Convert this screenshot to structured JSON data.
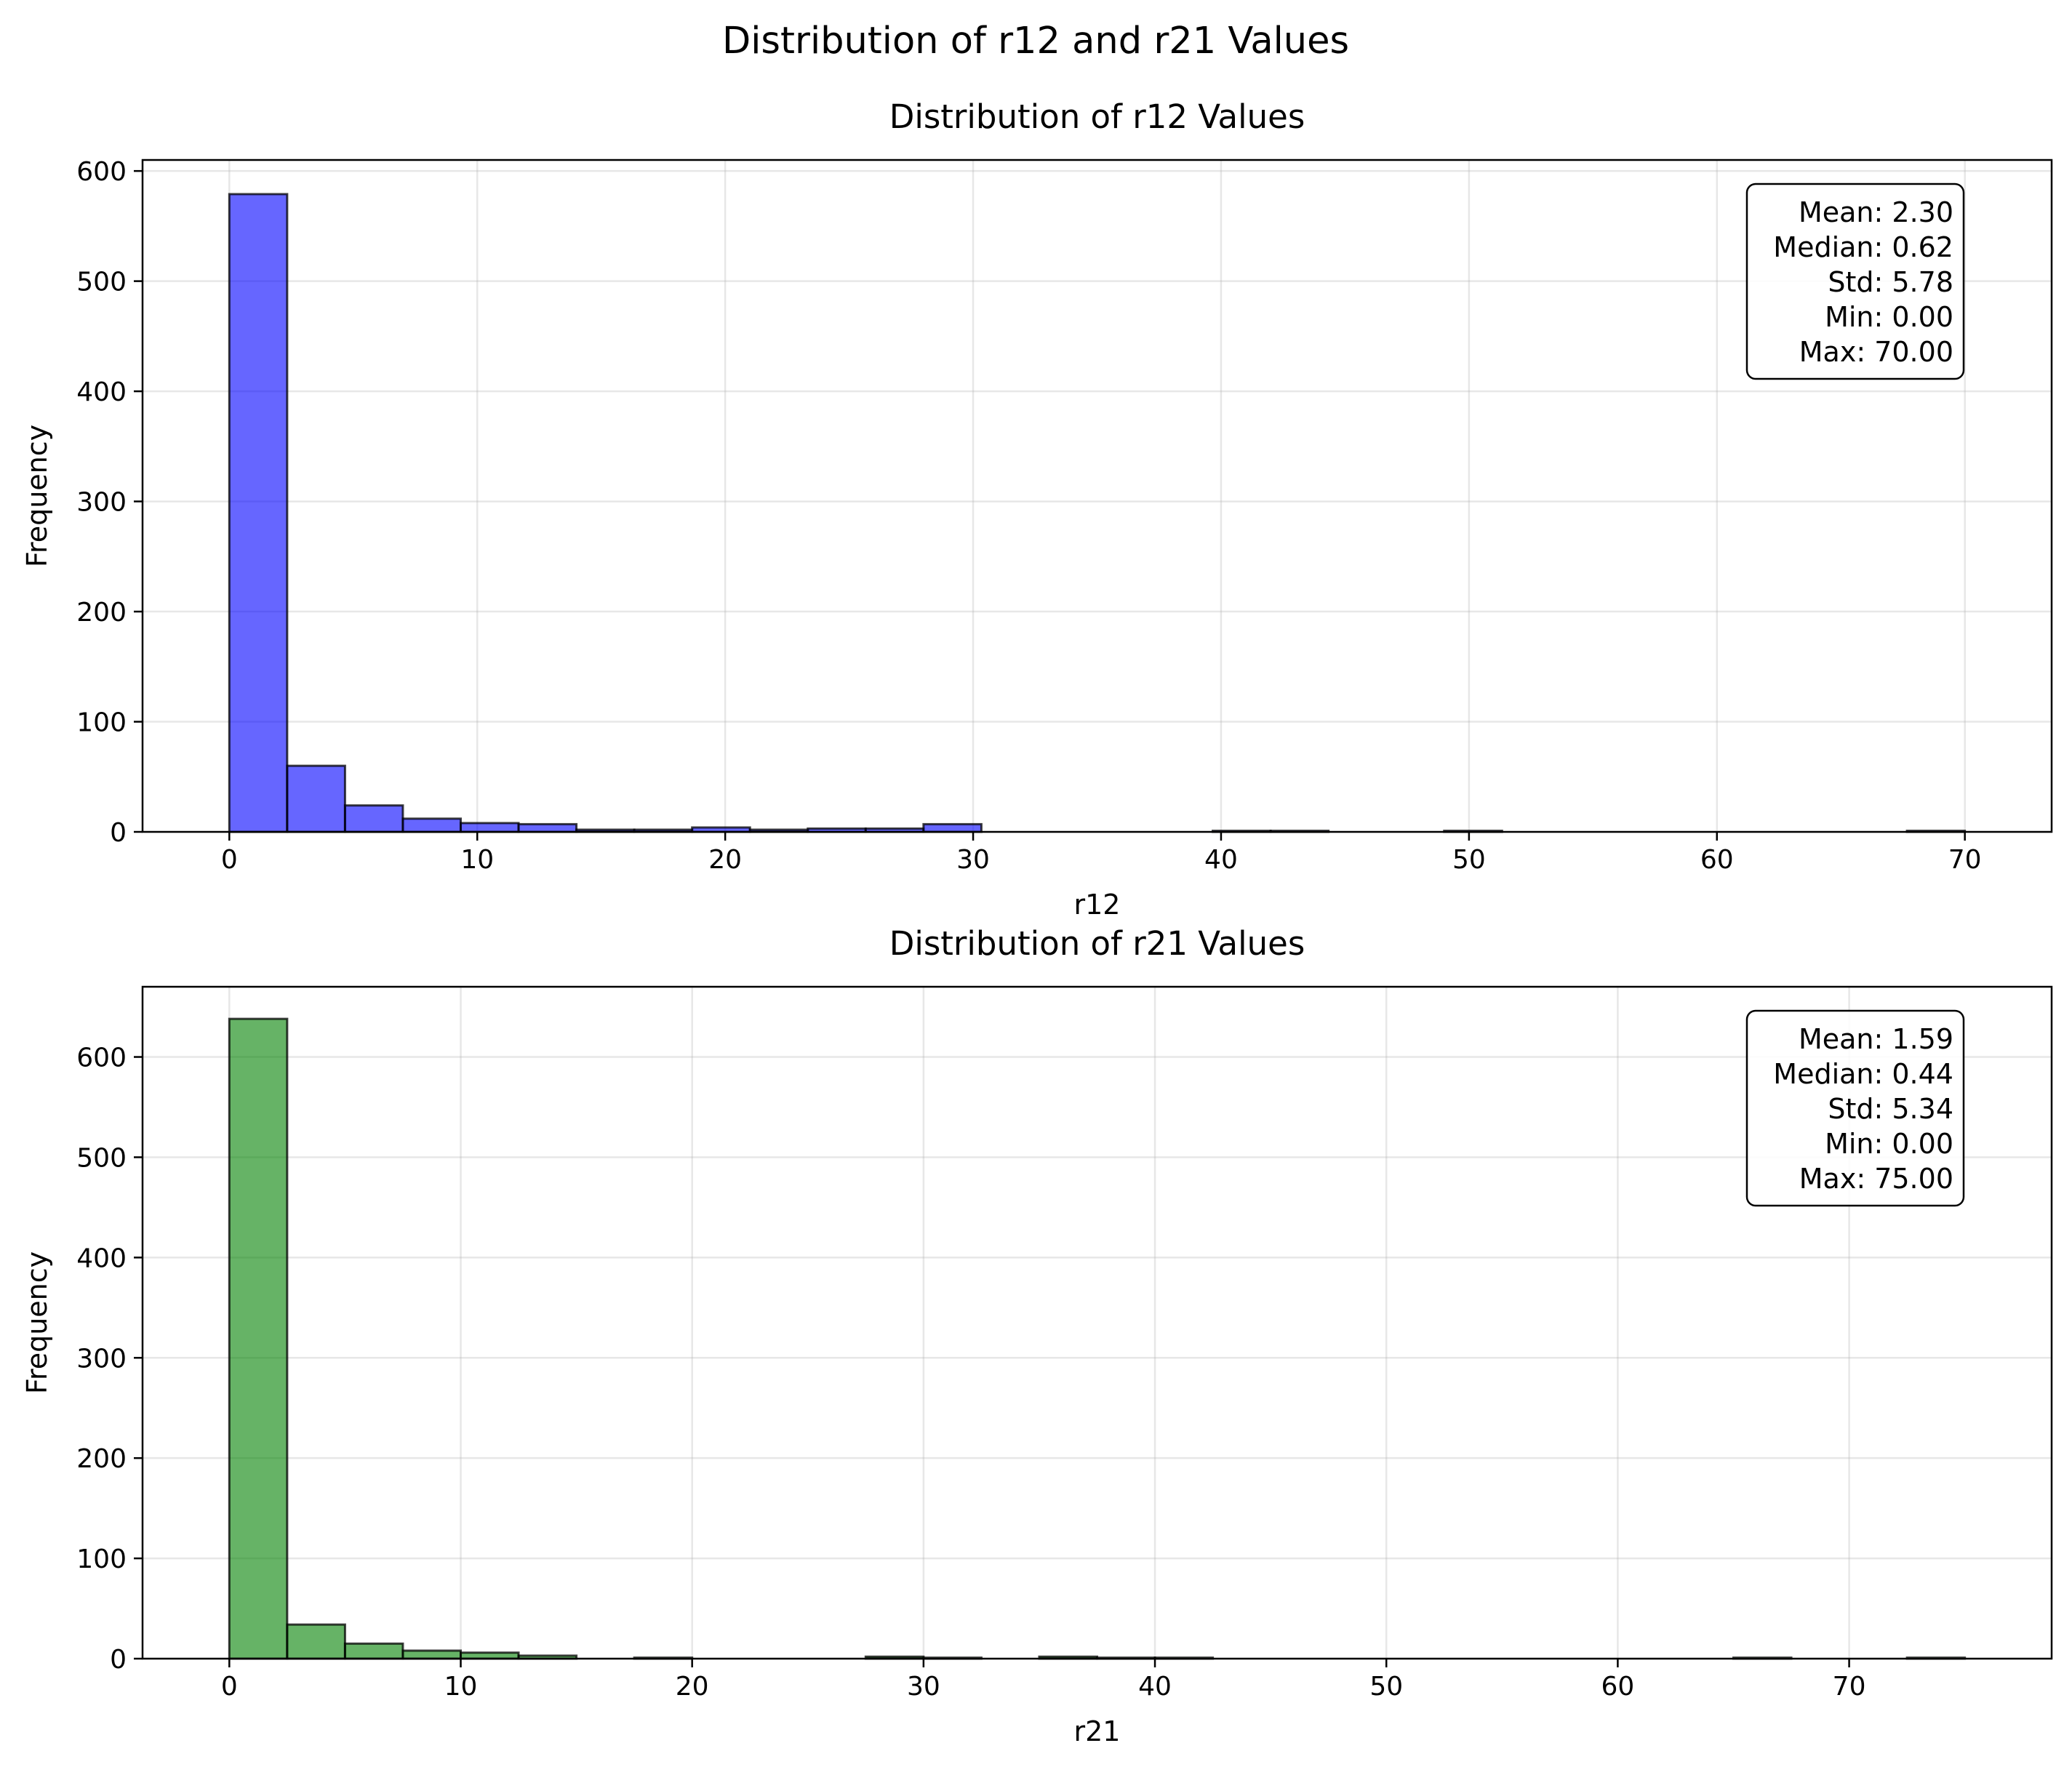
{
  "suptitle": "Distribution of r12 and r21 Values",
  "chart_data": [
    {
      "type": "bar",
      "subtype": "histogram",
      "title": "Distribution of r12 Values",
      "xlabel": "r12",
      "ylabel": "Frequency",
      "color": "#0000ff",
      "edge_color": "#000000",
      "bin_start": 0,
      "bin_width": 2.3333,
      "counts": [
        579,
        60,
        24,
        12,
        8,
        7,
        2,
        2,
        4,
        2,
        3,
        3,
        7,
        0,
        0,
        0,
        0,
        1,
        1,
        0,
        0,
        1,
        0,
        0,
        0,
        0,
        0,
        0,
        0,
        1
      ],
      "xlim": [
        -3.5,
        73.5
      ],
      "ylim": [
        0,
        610
      ],
      "xticks": [
        0,
        10,
        20,
        30,
        40,
        50,
        60,
        70
      ],
      "yticks": [
        0,
        100,
        200,
        300,
        400,
        500,
        600
      ],
      "grid": true,
      "stats_position": "top-right",
      "stats": [
        "Mean: 2.30",
        "Median: 0.62",
        "Std: 5.78",
        "Min: 0.00",
        "Max: 70.00"
      ]
    },
    {
      "type": "bar",
      "subtype": "histogram",
      "title": "Distribution of r21 Values",
      "xlabel": "r21",
      "ylabel": "Frequency",
      "color": "#008000",
      "edge_color": "#000000",
      "bin_start": 0,
      "bin_width": 2.5,
      "counts": [
        638,
        34,
        15,
        8,
        6,
        3,
        0,
        1,
        0,
        0,
        0,
        2,
        1,
        0,
        2,
        1,
        1,
        0,
        0,
        0,
        0,
        0,
        0,
        0,
        0,
        0,
        1,
        0,
        0,
        1
      ],
      "xlim": [
        -3.75,
        78.75
      ],
      "ylim": [
        0,
        670
      ],
      "xticks": [
        0,
        10,
        20,
        30,
        40,
        50,
        60,
        70
      ],
      "yticks": [
        0,
        100,
        200,
        300,
        400,
        500,
        600
      ],
      "grid": true,
      "stats_position": "top-right",
      "stats": [
        "Mean: 1.59",
        "Median: 0.44",
        "Std: 5.34",
        "Min: 0.00",
        "Max: 75.00"
      ]
    }
  ]
}
